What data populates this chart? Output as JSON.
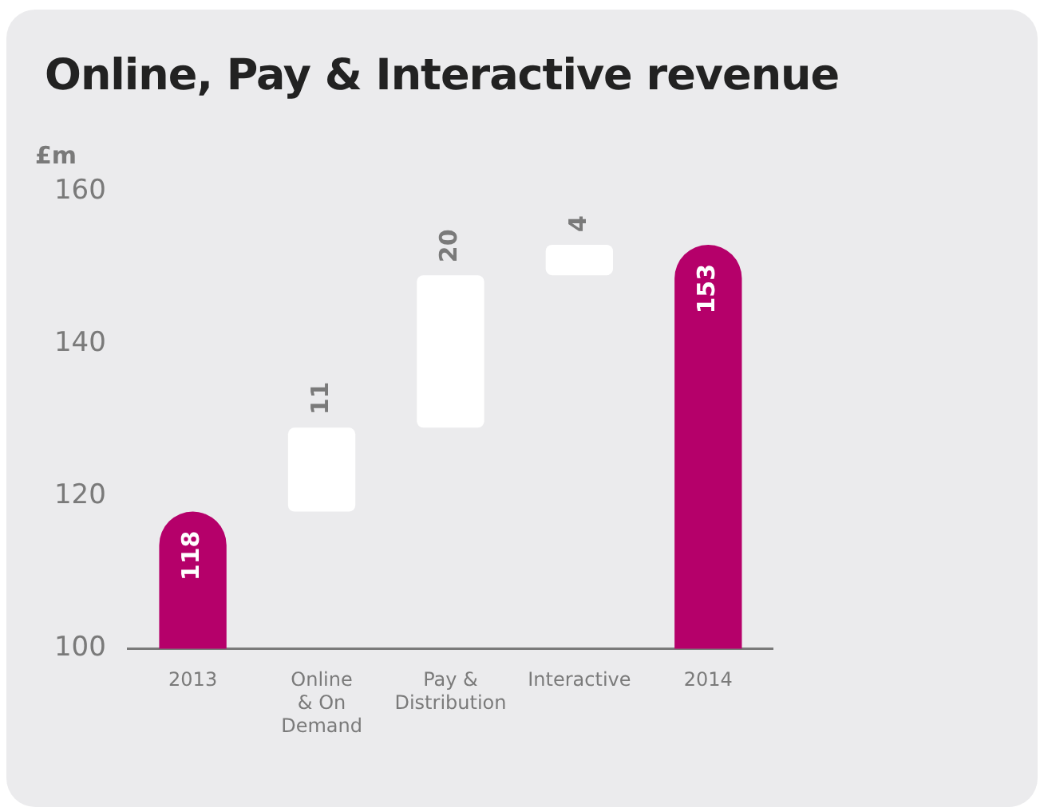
{
  "chart_data": {
    "type": "bar",
    "title": "Online, Pay & Interactive revenue",
    "ylabel": "£m",
    "categories": [
      "2013",
      "Online & On Demand",
      "Pay & Distribution",
      "Interactive",
      "2014"
    ],
    "values": [
      118,
      11,
      20,
      4,
      153
    ],
    "base": [
      null,
      118,
      129,
      149,
      null
    ],
    "colors": [
      "#b5006a",
      "#ffffff",
      "#ffffff",
      "#ffffff",
      "#b5006a"
    ],
    "ylim": [
      100,
      160
    ],
    "yticks": [
      100,
      120,
      140,
      160
    ],
    "grid": false,
    "legend": false,
    "data_labels": true
  }
}
